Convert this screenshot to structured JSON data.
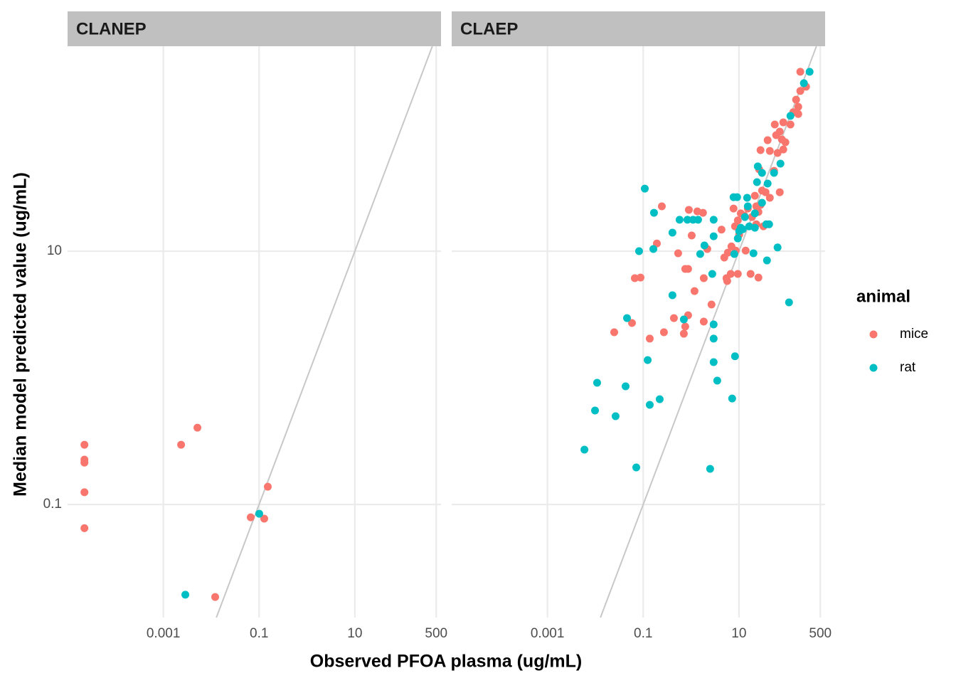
{
  "x_axis_label": "Observed PFOA plasma (ug/mL)",
  "y_axis_label": "Median model predicted value (ug/mL)",
  "legend": {
    "title": "animal",
    "position": "right"
  },
  "chart_data": [
    {
      "type": "scatter",
      "title": "CLANEP",
      "log_x": true,
      "log_y": true,
      "grid": true,
      "identity_line": true,
      "xlim": [
        1e-05,
        630
      ],
      "ylim": [
        0.0128,
        415
      ],
      "xticks": [
        0.001,
        0.1,
        10,
        500
      ],
      "yticks": [
        0.1,
        10
      ],
      "series": [
        {
          "name": "mice",
          "color": "#F8766D",
          "x": [
            2.25e-05,
            2.25e-05,
            2.25e-05,
            2.25e-05,
            2.25e-05,
            0.00235,
            0.00515,
            0.152,
            0.0668,
            0.128,
            0.0121
          ],
          "values": [
            0.296,
            0.226,
            0.214,
            0.125,
            0.065,
            0.296,
            0.404,
            0.138,
            0.0792,
            0.0773,
            0.0186
          ]
        },
        {
          "name": "rat",
          "color": "#00BFC4",
          "x": [
            0.1007,
            0.00288
          ],
          "values": [
            0.0845,
            0.0194
          ]
        }
      ]
    },
    {
      "type": "scatter",
      "title": "CLAEP",
      "log_x": true,
      "log_y": true,
      "grid": true,
      "identity_line": true,
      "xlim": [
        1e-05,
        630
      ],
      "ylim": [
        0.0128,
        415
      ],
      "xticks": [
        0.001,
        0.1,
        10,
        500
      ],
      "yticks": [
        0.1,
        10
      ],
      "series": [
        {
          "name": "mice",
          "color": "#F8766D",
          "x": [
            191,
            252,
            191,
            156,
            173,
            136,
            173,
            119,
            84.3,
            71.1,
            93.3,
            59.8,
            56,
            78.7,
            39.7,
            44.1,
            28.2,
            64,
            84.3,
            54,
            26.4,
            30.3,
            35.9,
            44.1,
            71.1,
            21.5,
            23.0,
            25.5,
            15.3,
            18.7,
            10.9,
            7.71,
            9.46,
            8.26,
            23.0,
            32.4,
            28.2,
            4.32,
            6.97,
            5.87,
            8.55,
            13.8,
            6.73,
            9.46,
            17.5,
            25.5,
            5.68,
            5.48,
            10.1,
            1.77,
            0.898,
            1.35,
            0.245,
            1.03,
            4.94,
            2.18,
            0.537,
            0.867,
            0.755,
            1.84,
            1.18,
            0.867,
            2.67,
            1.84,
            0.755,
            0.706,
            0.438,
            0.271,
            0.137,
            0.0248,
            0.0583,
            0.193,
            0.0668,
            0.0879,
            12.9
          ],
          "values": [
            261,
            199,
            184,
            157,
            138,
            125,
            121,
            100,
            104,
            87.9,
            72.4,
            82.4,
            100,
            76.2,
            75.2,
            61.9,
            62.8,
            59.6,
            63.5,
            43.1,
            44.3,
            30.1,
            29.2,
            26.4,
            29.2,
            27.4,
            22.6,
            20.4,
            21.7,
            18.6,
            19.9,
            21.7,
            17.5,
            15.7,
            16.3,
            15.7,
            23.2,
            14.8,
            10.9,
            9.74,
            10.1,
            10.1,
            6.61,
            6.61,
            6.61,
            6.19,
            5.81,
            6.12,
            13.5,
            20.1,
            21.2,
            20.6,
            22.6,
            13.3,
            8.9,
            10.4,
            9.62,
            7.24,
            7.24,
            6.12,
            4.84,
            3.12,
            3.79,
            2.78,
            2.54,
            2.23,
            2.96,
            2.29,
            2.04,
            2.29,
            2.71,
            11.5,
            6.12,
            6.19,
            19.1
          ]
        },
        {
          "name": "rat",
          "color": "#00BFC4",
          "x": [
            299,
            227,
            119,
            111,
            64,
            38.5,
            73.5,
            54,
            30.3,
            24.7,
            39.7,
            23.8,
            14.8,
            9.15,
            7.71,
            15.3,
            30.3,
            21.5,
            13.3,
            10.9,
            10.1,
            12.0,
            9.46,
            21.5,
            37.2,
            16.4,
            42.6,
            2.96,
            2.96,
            2.77,
            1.4,
            1.1,
            0.838,
            0.575,
            0.408,
            0.163,
            0.082,
            0.168,
            0.108,
            1.9,
            1.55,
            2.96,
            2.96,
            2.96,
            3.52,
            8.26,
            7.21,
            2.5,
            0.706,
            0.408,
            0.0459,
            0.124,
            0.221,
            0.137,
            0.0429,
            0.0109,
            0.00986,
            0.0265,
            0.00592,
            0.0716,
            20.1,
            7.98
          ],
          "values": [
            261,
            212,
            117,
            3.94,
            10.7,
            8.45,
            49.1,
            41.5,
            41.5,
            46.7,
            34.2,
            35.1,
            26.4,
            26.7,
            26.7,
            22.6,
            24.1,
            19.9,
            18.6,
            15.3,
            14.4,
            14.9,
            12.6,
            15.3,
            16.3,
            15.7,
            16.3,
            17.7,
            13.1,
            6.61,
            17.7,
            17.7,
            17.7,
            17.7,
            14.0,
            10.4,
            10,
            20.1,
            31.2,
            11.1,
            9.5,
            2.64,
            2.04,
            1.33,
            0.95,
            1.48,
            0.687,
            0.191,
            2.89,
            4.49,
            2.96,
            1.38,
            0.678,
            0.612,
            0.857,
            0.914,
            0.552,
            0.498,
            0.271,
            0.196,
            9.62,
            9.5
          ]
        }
      ]
    }
  ]
}
